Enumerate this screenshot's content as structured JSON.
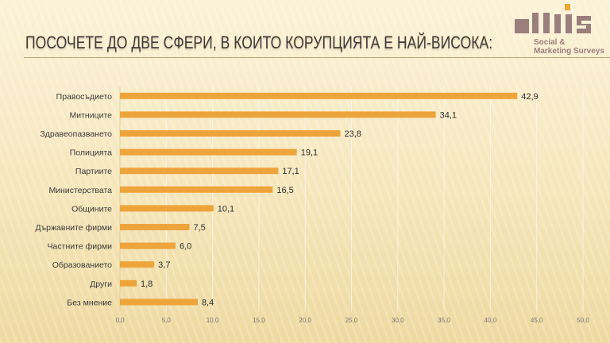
{
  "slide": {
    "title": "ПОСОЧЕТЕ ДО ДВЕ СФЕРИ, В КОИТО КОРУПЦИЯТА Е НАЙ-ВИСОКА:",
    "logo": {
      "brand": "afis",
      "line1": "Social &",
      "line2": "Marketing Surveys",
      "color": "#9a7f7d",
      "accent": "#f0a530"
    }
  },
  "chart_data": {
    "type": "bar",
    "orientation": "horizontal",
    "title": "ПОСОЧЕТЕ ДО ДВЕ СФЕРИ, В КОИТО КОРУПЦИЯТА Е НАЙ-ВИСОКА:",
    "categories": [
      "Правосъдието",
      "Митниците",
      "Здравеопазването",
      "Полицията",
      "Партиите",
      "Министерствата",
      "Общините",
      "Държавните фирми",
      "Частните фирми",
      "Образованието",
      "Други",
      "Без мнение"
    ],
    "values": [
      42.9,
      34.1,
      23.8,
      19.1,
      17.1,
      16.5,
      10.1,
      7.5,
      6.0,
      3.7,
      1.8,
      8.4
    ],
    "value_labels": [
      "42,9",
      "34,1",
      "23,8",
      "19,1",
      "17,1",
      "16,5",
      "10,1",
      "7,5",
      "6,0",
      "3,7",
      "1,8",
      "8,4"
    ],
    "xlim": [
      0,
      50
    ],
    "xticks": [
      "0,0",
      "5,0",
      "10,0",
      "15,0",
      "20,0",
      "25,0",
      "30,0",
      "35,0",
      "40,0",
      "45,0",
      "50,0"
    ],
    "grid": true,
    "bar_color": "#eda43a",
    "xlabel": "",
    "ylabel": ""
  }
}
